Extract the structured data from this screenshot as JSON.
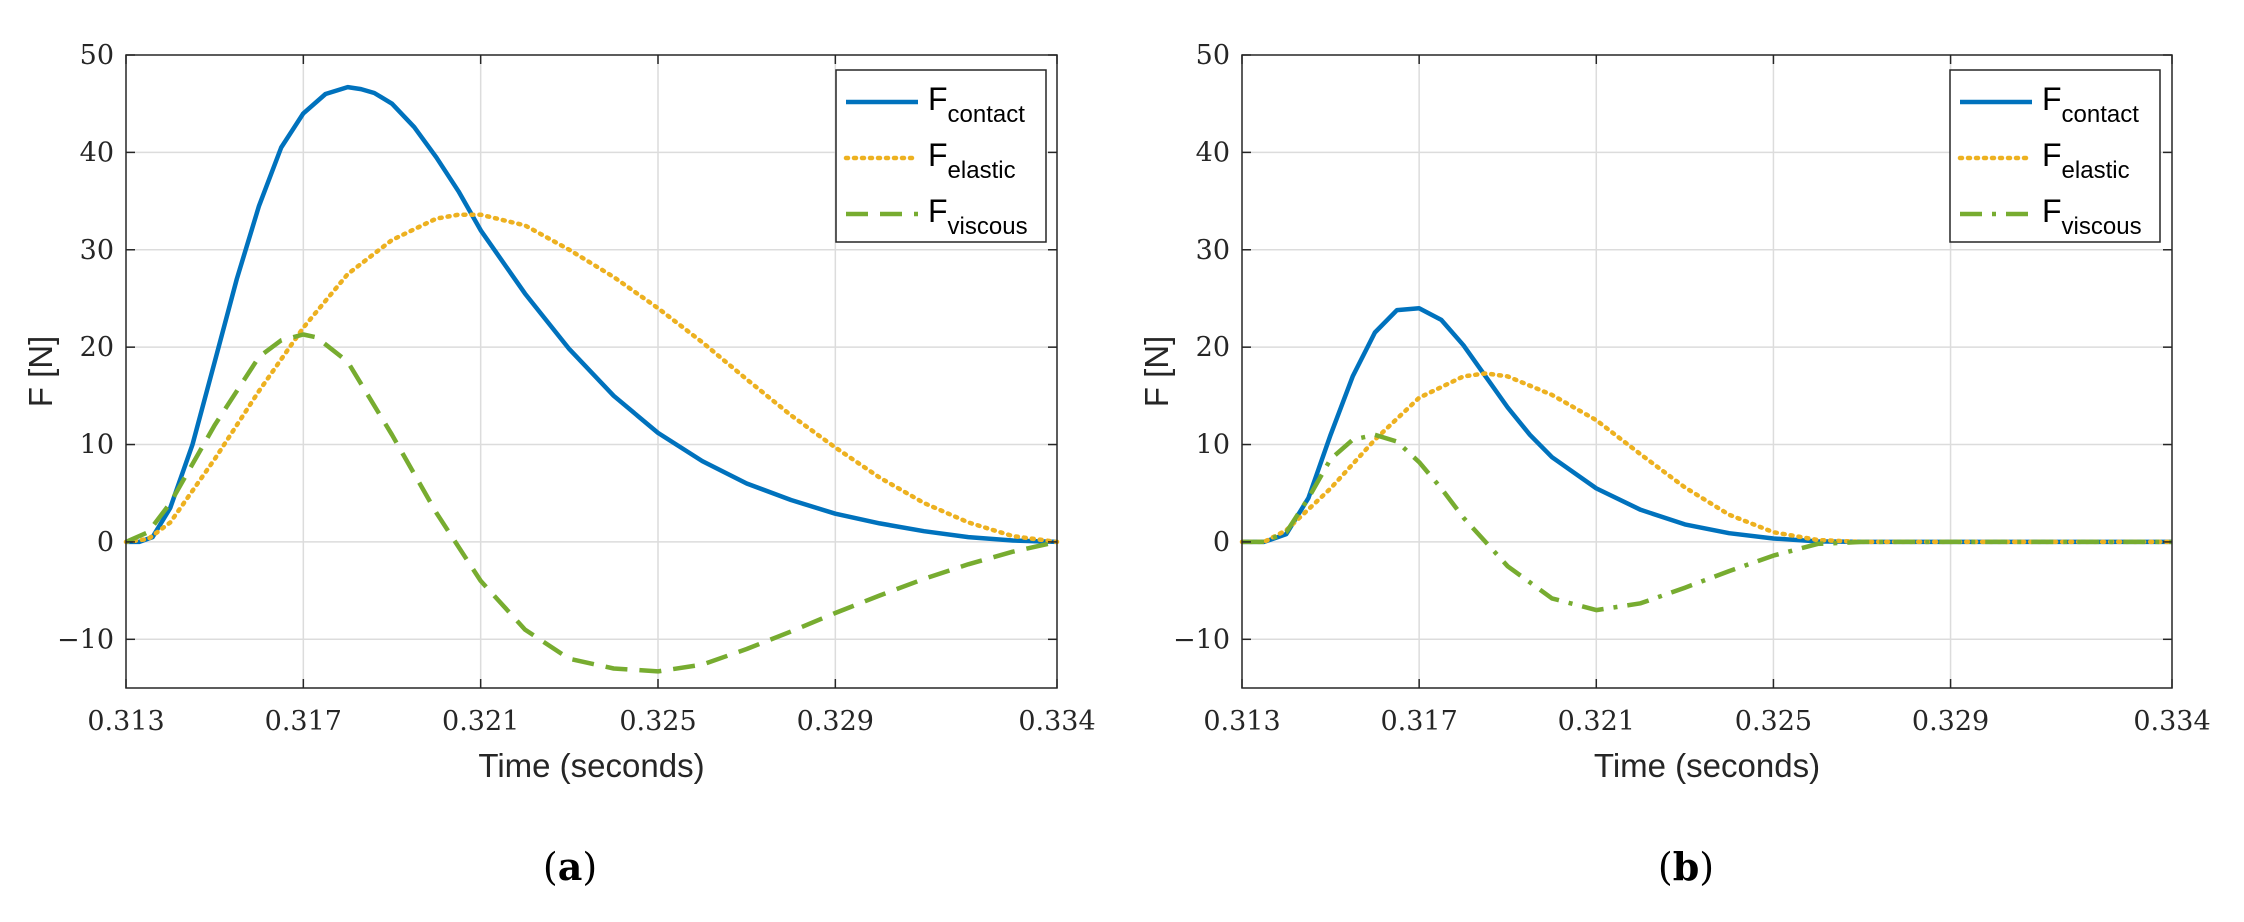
{
  "chart_data": [
    {
      "type": "line",
      "panel_label_open": "(",
      "panel_label": "a",
      "panel_label_close": ")",
      "xlabel": "Time (seconds)",
      "ylabel": "F [N]",
      "xlim": [
        0.313,
        0.334
      ],
      "ylim": [
        -15,
        50
      ],
      "xticks": [
        0.313,
        0.317,
        0.321,
        0.325,
        0.329,
        0.334
      ],
      "xtick_labels": [
        "0.313",
        "0.317",
        "0.321",
        "0.325",
        "0.329",
        "0.334"
      ],
      "yticks": [
        -10,
        0,
        10,
        20,
        30,
        40,
        50
      ],
      "ytick_labels": [
        "−10",
        "0",
        "10",
        "20",
        "30",
        "40",
        "50"
      ],
      "grid": true,
      "legend_position": "top-right",
      "series": [
        {
          "name": "F",
          "subscript": "contact",
          "color": "#0072BD",
          "style": "solid",
          "x": [
            0.313,
            0.3133,
            0.3136,
            0.314,
            0.3145,
            0.315,
            0.3155,
            0.316,
            0.3165,
            0.317,
            0.3175,
            0.318,
            0.3183,
            0.3186,
            0.319,
            0.3195,
            0.32,
            0.3205,
            0.321,
            0.322,
            0.323,
            0.324,
            0.325,
            0.326,
            0.327,
            0.328,
            0.329,
            0.33,
            0.331,
            0.332,
            0.333,
            0.334
          ],
          "y": [
            0,
            0,
            0.5,
            3.5,
            10,
            18.5,
            27,
            34.5,
            40.5,
            44,
            46,
            46.7,
            46.5,
            46.1,
            45,
            42.6,
            39.5,
            36,
            32,
            25.5,
            19.8,
            15,
            11.2,
            8.3,
            6,
            4.3,
            2.9,
            1.9,
            1.1,
            0.5,
            0.15,
            0
          ]
        },
        {
          "name": "F",
          "subscript": "elastic",
          "color": "#EDB120",
          "style": "dotted",
          "x": [
            0.313,
            0.3135,
            0.314,
            0.315,
            0.316,
            0.317,
            0.318,
            0.319,
            0.32,
            0.3205,
            0.321,
            0.322,
            0.323,
            0.324,
            0.325,
            0.326,
            0.327,
            0.328,
            0.329,
            0.33,
            0.331,
            0.332,
            0.333,
            0.334
          ],
          "y": [
            0,
            0.3,
            2,
            8.5,
            15.5,
            22,
            27.5,
            31,
            33.2,
            33.6,
            33.6,
            32.5,
            30,
            27.2,
            24,
            20.5,
            16.7,
            13,
            9.7,
            6.6,
            4,
            2,
            0.6,
            0
          ]
        },
        {
          "name": "F",
          "subscript": "viscous",
          "color": "#77AC30",
          "style": "dashed",
          "x": [
            0.313,
            0.3135,
            0.314,
            0.315,
            0.316,
            0.3165,
            0.317,
            0.3173,
            0.318,
            0.319,
            0.32,
            0.321,
            0.322,
            0.323,
            0.324,
            0.325,
            0.326,
            0.327,
            0.328,
            0.329,
            0.33,
            0.331,
            0.332,
            0.333,
            0.334
          ],
          "y": [
            0,
            1,
            4,
            12,
            19,
            20.7,
            21.3,
            21,
            18.5,
            11,
            3,
            -4,
            -9,
            -12,
            -13,
            -13.3,
            -12.6,
            -11,
            -9.2,
            -7.3,
            -5.5,
            -3.8,
            -2.3,
            -1,
            0
          ]
        }
      ]
    },
    {
      "type": "line",
      "panel_label_open": "(",
      "panel_label": "b",
      "panel_label_close": ")",
      "xlabel": "Time (seconds)",
      "ylabel": "F [N]",
      "xlim": [
        0.313,
        0.334
      ],
      "ylim": [
        -15,
        50
      ],
      "xticks": [
        0.313,
        0.317,
        0.321,
        0.325,
        0.329,
        0.334
      ],
      "xtick_labels": [
        "0.313",
        "0.317",
        "0.321",
        "0.325",
        "0.329",
        "0.334"
      ],
      "yticks": [
        -10,
        0,
        10,
        20,
        30,
        40,
        50
      ],
      "ytick_labels": [
        "−10",
        "0",
        "10",
        "20",
        "30",
        "40",
        "50"
      ],
      "grid": true,
      "legend_position": "top-right",
      "series": [
        {
          "name": "F",
          "subscript": "contact",
          "color": "#0072BD",
          "style": "solid",
          "x": [
            0.313,
            0.3135,
            0.314,
            0.3145,
            0.315,
            0.3155,
            0.316,
            0.3165,
            0.317,
            0.3175,
            0.318,
            0.3185,
            0.319,
            0.3195,
            0.32,
            0.321,
            0.322,
            0.323,
            0.324,
            0.325,
            0.326,
            0.327,
            0.334
          ],
          "y": [
            0,
            0,
            0.8,
            4.5,
            11,
            17,
            21.5,
            23.8,
            24,
            22.8,
            20.2,
            17,
            13.8,
            11,
            8.7,
            5.5,
            3.3,
            1.8,
            0.9,
            0.35,
            0.05,
            0,
            0
          ]
        },
        {
          "name": "F",
          "subscript": "elastic",
          "color": "#EDB120",
          "style": "dotted",
          "x": [
            0.313,
            0.3135,
            0.314,
            0.315,
            0.316,
            0.317,
            0.318,
            0.3185,
            0.319,
            0.32,
            0.321,
            0.322,
            0.323,
            0.324,
            0.325,
            0.326,
            0.327,
            0.334
          ],
          "y": [
            0,
            0,
            1.2,
            5.5,
            10.5,
            14.8,
            17,
            17.3,
            17,
            15.1,
            12.5,
            9,
            5.6,
            2.8,
            1,
            0.2,
            0,
            0
          ]
        },
        {
          "name": "F",
          "subscript": "viscous",
          "color": "#77AC30",
          "style": "dashdot",
          "x": [
            0.313,
            0.3135,
            0.314,
            0.3145,
            0.315,
            0.3155,
            0.316,
            0.3165,
            0.317,
            0.3175,
            0.318,
            0.319,
            0.32,
            0.321,
            0.322,
            0.323,
            0.324,
            0.325,
            0.326,
            0.327,
            0.334
          ],
          "y": [
            0,
            0,
            1,
            4.5,
            8.5,
            10.5,
            11,
            10.3,
            8.2,
            5.5,
            2.5,
            -2.5,
            -5.8,
            -7,
            -6.3,
            -4.7,
            -3,
            -1.4,
            -0.2,
            0,
            0
          ]
        }
      ]
    }
  ]
}
